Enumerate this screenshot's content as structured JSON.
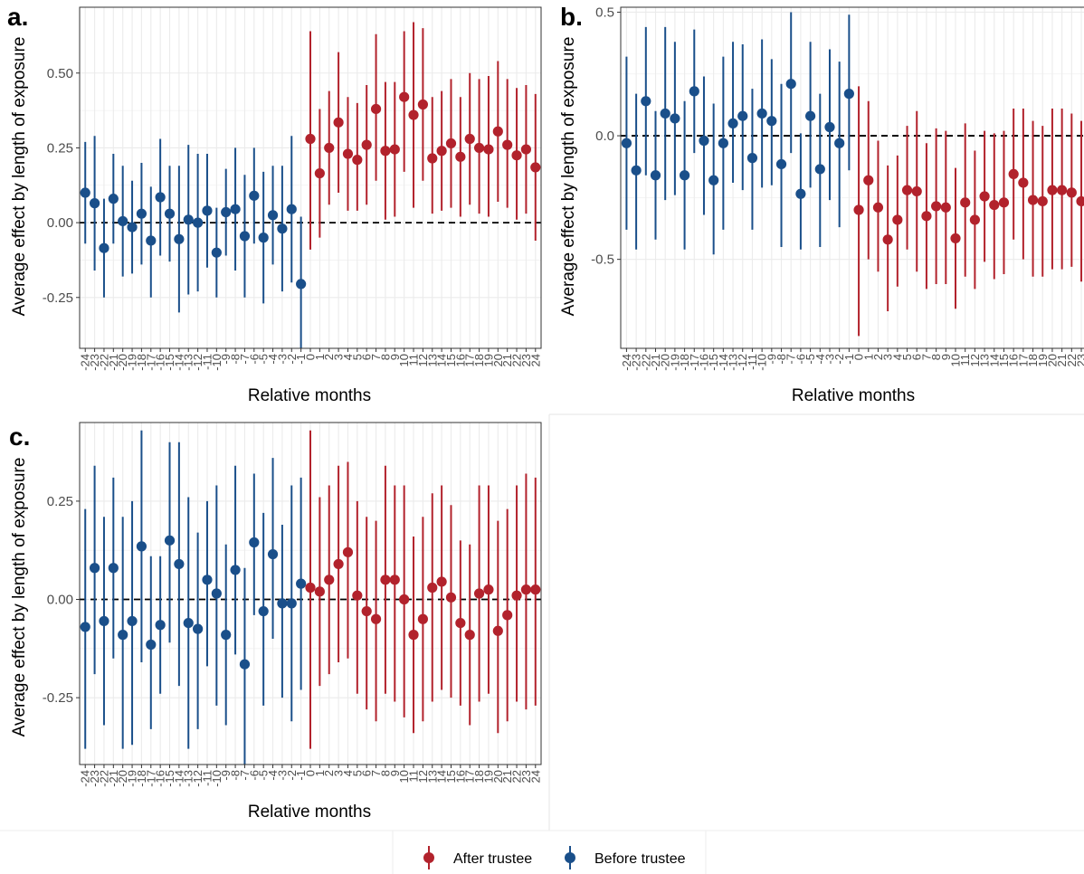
{
  "chart_data": [
    {
      "type": "scatter",
      "panel_label": "a.",
      "xlabel": "Relative months",
      "ylabel": "Average effect by length of exposure",
      "ylim": [
        -0.42,
        0.72
      ],
      "yticks": [
        -0.25,
        0.0,
        0.25,
        0.5
      ],
      "ytick_labels": [
        "-0.25",
        "0.00",
        "0.25",
        "0.50"
      ],
      "x": [
        -24,
        -23,
        -22,
        -21,
        -20,
        -19,
        -18,
        -17,
        -16,
        -15,
        -14,
        -13,
        -12,
        -11,
        -10,
        -9,
        -8,
        -7,
        -6,
        -5,
        -4,
        -3,
        -2,
        -1,
        0,
        1,
        2,
        3,
        4,
        5,
        6,
        7,
        8,
        9,
        10,
        11,
        12,
        13,
        14,
        15,
        16,
        17,
        18,
        19,
        20,
        21,
        22,
        23,
        24
      ],
      "series": [
        {
          "name": "Before trustee",
          "color": "#1a4f8a",
          "x": [
            -24,
            -23,
            -22,
            -21,
            -20,
            -19,
            -18,
            -17,
            -16,
            -15,
            -14,
            -13,
            -12,
            -11,
            -10,
            -9,
            -8,
            -7,
            -6,
            -5,
            -4,
            -3,
            -2,
            -1
          ],
          "estimate": [
            0.1,
            0.065,
            -0.085,
            0.08,
            0.005,
            -0.015,
            0.03,
            -0.06,
            0.085,
            0.03,
            -0.055,
            0.01,
            0.0,
            0.04,
            -0.1,
            0.035,
            0.045,
            -0.045,
            0.09,
            -0.05,
            0.025,
            -0.02,
            0.045,
            -0.205
          ],
          "lower": [
            -0.07,
            -0.16,
            -0.25,
            -0.07,
            -0.18,
            -0.17,
            -0.14,
            -0.25,
            -0.11,
            -0.13,
            -0.3,
            -0.24,
            -0.23,
            -0.15,
            -0.25,
            -0.11,
            -0.16,
            -0.25,
            -0.07,
            -0.27,
            -0.14,
            -0.23,
            -0.2,
            -0.42
          ],
          "upper": [
            0.27,
            0.29,
            0.08,
            0.23,
            0.19,
            0.14,
            0.2,
            0.12,
            0.28,
            0.19,
            0.19,
            0.26,
            0.23,
            0.23,
            0.05,
            0.18,
            0.25,
            0.16,
            0.25,
            0.17,
            0.19,
            0.19,
            0.29,
            0.02
          ]
        },
        {
          "name": "After trustee",
          "color": "#b2222c",
          "x": [
            0,
            1,
            2,
            3,
            4,
            5,
            6,
            7,
            8,
            9,
            10,
            11,
            12,
            13,
            14,
            15,
            16,
            17,
            18,
            19,
            20,
            21,
            22,
            23,
            24
          ],
          "estimate": [
            0.28,
            0.165,
            0.25,
            0.335,
            0.23,
            0.21,
            0.26,
            0.38,
            0.24,
            0.245,
            0.42,
            0.36,
            0.395,
            0.215,
            0.24,
            0.265,
            0.22,
            0.28,
            0.25,
            0.245,
            0.305,
            0.26,
            0.225,
            0.245,
            0.185
          ],
          "lower": [
            -0.09,
            -0.05,
            0.06,
            0.1,
            0.04,
            0.04,
            0.06,
            0.14,
            0.01,
            0.02,
            0.17,
            0.05,
            0.14,
            0.03,
            0.04,
            0.05,
            0.02,
            0.06,
            0.03,
            0.02,
            0.07,
            0.05,
            0.01,
            0.03,
            -0.06
          ],
          "upper": [
            0.64,
            0.38,
            0.44,
            0.57,
            0.42,
            0.4,
            0.46,
            0.63,
            0.47,
            0.47,
            0.64,
            0.67,
            0.65,
            0.42,
            0.44,
            0.48,
            0.42,
            0.5,
            0.48,
            0.49,
            0.54,
            0.48,
            0.45,
            0.46,
            0.43
          ]
        }
      ]
    },
    {
      "type": "scatter",
      "panel_label": "b.",
      "xlabel": "Relative months",
      "ylabel": "Average effect by length of exposure",
      "ylim": [
        -0.86,
        0.52
      ],
      "yticks": [
        -0.5,
        0.0,
        0.5
      ],
      "ytick_labels": [
        "-0.5",
        "0.0",
        "0.5"
      ],
      "x": [
        -24,
        -23,
        -22,
        -21,
        -20,
        -19,
        -18,
        -17,
        -16,
        -15,
        -14,
        -13,
        -12,
        -11,
        -10,
        -9,
        -8,
        -7,
        -6,
        -5,
        -4,
        -3,
        -2,
        -1,
        0,
        1,
        2,
        3,
        4,
        5,
        6,
        7,
        8,
        9,
        10,
        11,
        12,
        13,
        14,
        15,
        16,
        17,
        18,
        19,
        20,
        21,
        22,
        23
      ],
      "series": [
        {
          "name": "Before trustee",
          "color": "#1a4f8a",
          "x": [
            -24,
            -23,
            -22,
            -21,
            -20,
            -19,
            -18,
            -17,
            -16,
            -15,
            -14,
            -13,
            -12,
            -11,
            -10,
            -9,
            -8,
            -7,
            -6,
            -5,
            -4,
            -3,
            -2,
            -1
          ],
          "estimate": [
            -0.03,
            -0.14,
            0.14,
            -0.16,
            0.09,
            0.07,
            -0.16,
            0.18,
            -0.02,
            -0.18,
            -0.03,
            0.05,
            0.08,
            -0.09,
            0.09,
            0.06,
            -0.115,
            0.21,
            -0.235,
            0.08,
            -0.135,
            0.035,
            -0.03,
            0.17
          ],
          "lower": [
            -0.38,
            -0.46,
            -0.16,
            -0.42,
            -0.26,
            -0.24,
            -0.46,
            -0.07,
            -0.32,
            -0.48,
            -0.38,
            -0.19,
            -0.22,
            -0.38,
            -0.21,
            -0.2,
            -0.45,
            -0.07,
            -0.46,
            -0.21,
            -0.45,
            -0.26,
            -0.37,
            -0.14
          ],
          "upper": [
            0.32,
            0.17,
            0.44,
            0.1,
            0.44,
            0.38,
            0.14,
            0.43,
            0.24,
            0.13,
            0.32,
            0.38,
            0.37,
            0.19,
            0.39,
            0.31,
            0.21,
            0.5,
            0.01,
            0.38,
            0.17,
            0.35,
            0.3,
            0.49
          ]
        },
        {
          "name": "After trustee",
          "color": "#b2222c",
          "x": [
            0,
            1,
            2,
            3,
            4,
            5,
            6,
            7,
            8,
            9,
            10,
            11,
            12,
            13,
            14,
            15,
            16,
            17,
            18,
            19,
            20,
            21,
            22,
            23
          ],
          "estimate": [
            -0.3,
            -0.18,
            -0.29,
            -0.42,
            -0.34,
            -0.22,
            -0.225,
            -0.325,
            -0.285,
            -0.29,
            -0.415,
            -0.27,
            -0.34,
            -0.245,
            -0.28,
            -0.27,
            -0.155,
            -0.19,
            -0.26,
            -0.265,
            -0.22,
            -0.22,
            -0.23,
            -0.265
          ],
          "lower": [
            -0.81,
            -0.5,
            -0.55,
            -0.71,
            -0.61,
            -0.46,
            -0.55,
            -0.62,
            -0.6,
            -0.6,
            -0.7,
            -0.57,
            -0.62,
            -0.51,
            -0.58,
            -0.56,
            -0.42,
            -0.5,
            -0.57,
            -0.57,
            -0.54,
            -0.54,
            -0.53,
            -0.59
          ],
          "upper": [
            0.2,
            0.14,
            -0.02,
            -0.12,
            -0.08,
            0.04,
            0.1,
            -0.03,
            0.03,
            0.02,
            -0.13,
            0.05,
            -0.06,
            0.02,
            0.01,
            0.02,
            0.11,
            0.11,
            0.06,
            0.04,
            0.11,
            0.11,
            0.09,
            0.06
          ]
        }
      ]
    },
    {
      "type": "scatter",
      "panel_label": "c.",
      "xlabel": "Relative months",
      "ylabel": "Average effect by length of exposure",
      "ylim": [
        -0.42,
        0.45
      ],
      "yticks": [
        -0.25,
        0.0,
        0.25
      ],
      "ytick_labels": [
        "-0.25",
        "0.00",
        "0.25"
      ],
      "x": [
        -24,
        -23,
        -22,
        -21,
        -20,
        -19,
        -18,
        -17,
        -16,
        -15,
        -14,
        -13,
        -12,
        -11,
        -10,
        -9,
        -8,
        -7,
        -6,
        -5,
        -4,
        -3,
        -2,
        -1,
        0,
        1,
        2,
        3,
        4,
        5,
        6,
        7,
        8,
        9,
        10,
        11,
        12,
        13,
        14,
        15,
        16,
        17,
        18,
        19,
        20,
        21,
        22,
        23,
        24
      ],
      "series": [
        {
          "name": "Before trustee",
          "color": "#1a4f8a",
          "x": [
            -24,
            -23,
            -22,
            -21,
            -20,
            -19,
            -18,
            -17,
            -16,
            -15,
            -14,
            -13,
            -12,
            -11,
            -10,
            -9,
            -8,
            -7,
            -6,
            -5,
            -4,
            -3,
            -2,
            -1
          ],
          "estimate": [
            -0.07,
            0.08,
            -0.055,
            0.08,
            -0.09,
            -0.055,
            0.135,
            -0.115,
            -0.065,
            0.15,
            0.09,
            -0.06,
            -0.075,
            0.05,
            0.015,
            -0.09,
            0.075,
            -0.165,
            0.145,
            -0.03,
            0.115,
            -0.01,
            -0.01,
            0.04
          ],
          "lower": [
            -0.38,
            -0.19,
            -0.32,
            -0.15,
            -0.38,
            -0.37,
            -0.16,
            -0.33,
            -0.24,
            -0.11,
            -0.22,
            -0.38,
            -0.33,
            -0.17,
            -0.27,
            -0.32,
            -0.14,
            -0.42,
            -0.04,
            -0.27,
            -0.1,
            -0.25,
            -0.31,
            -0.23
          ],
          "upper": [
            0.23,
            0.34,
            0.21,
            0.31,
            0.21,
            0.25,
            0.43,
            0.11,
            0.11,
            0.4,
            0.4,
            0.26,
            0.17,
            0.25,
            0.29,
            0.14,
            0.34,
            0.08,
            0.32,
            0.22,
            0.36,
            0.19,
            0.29,
            0.31
          ]
        },
        {
          "name": "After trustee",
          "color": "#b2222c",
          "x": [
            0,
            1,
            2,
            3,
            4,
            5,
            6,
            7,
            8,
            9,
            10,
            11,
            12,
            13,
            14,
            15,
            16,
            17,
            18,
            19,
            20,
            21,
            22,
            23,
            24
          ],
          "estimate": [
            0.03,
            0.02,
            0.05,
            0.09,
            0.12,
            0.01,
            -0.03,
            -0.05,
            0.05,
            0.05,
            0.0,
            -0.09,
            -0.05,
            0.03,
            0.045,
            0.005,
            -0.06,
            -0.09,
            0.015,
            0.025,
            -0.08,
            -0.04,
            0.01,
            0.025,
            0.025
          ],
          "lower": [
            -0.38,
            -0.22,
            -0.19,
            -0.16,
            -0.15,
            -0.24,
            -0.28,
            -0.31,
            -0.24,
            -0.26,
            -0.3,
            -0.34,
            -0.31,
            -0.26,
            -0.23,
            -0.25,
            -0.27,
            -0.32,
            -0.26,
            -0.24,
            -0.34,
            -0.31,
            -0.26,
            -0.28,
            -0.27
          ],
          "upper": [
            0.43,
            0.26,
            0.29,
            0.34,
            0.35,
            0.25,
            0.21,
            0.2,
            0.34,
            0.29,
            0.29,
            0.16,
            0.21,
            0.27,
            0.29,
            0.24,
            0.15,
            0.14,
            0.29,
            0.29,
            0.2,
            0.23,
            0.29,
            0.32,
            0.31
          ]
        }
      ]
    }
  ],
  "legend": {
    "position": "bottom-center",
    "items": [
      {
        "label": "After trustee",
        "color": "#b2222c"
      },
      {
        "label": "Before trustee",
        "color": "#1a4f8a"
      }
    ]
  }
}
